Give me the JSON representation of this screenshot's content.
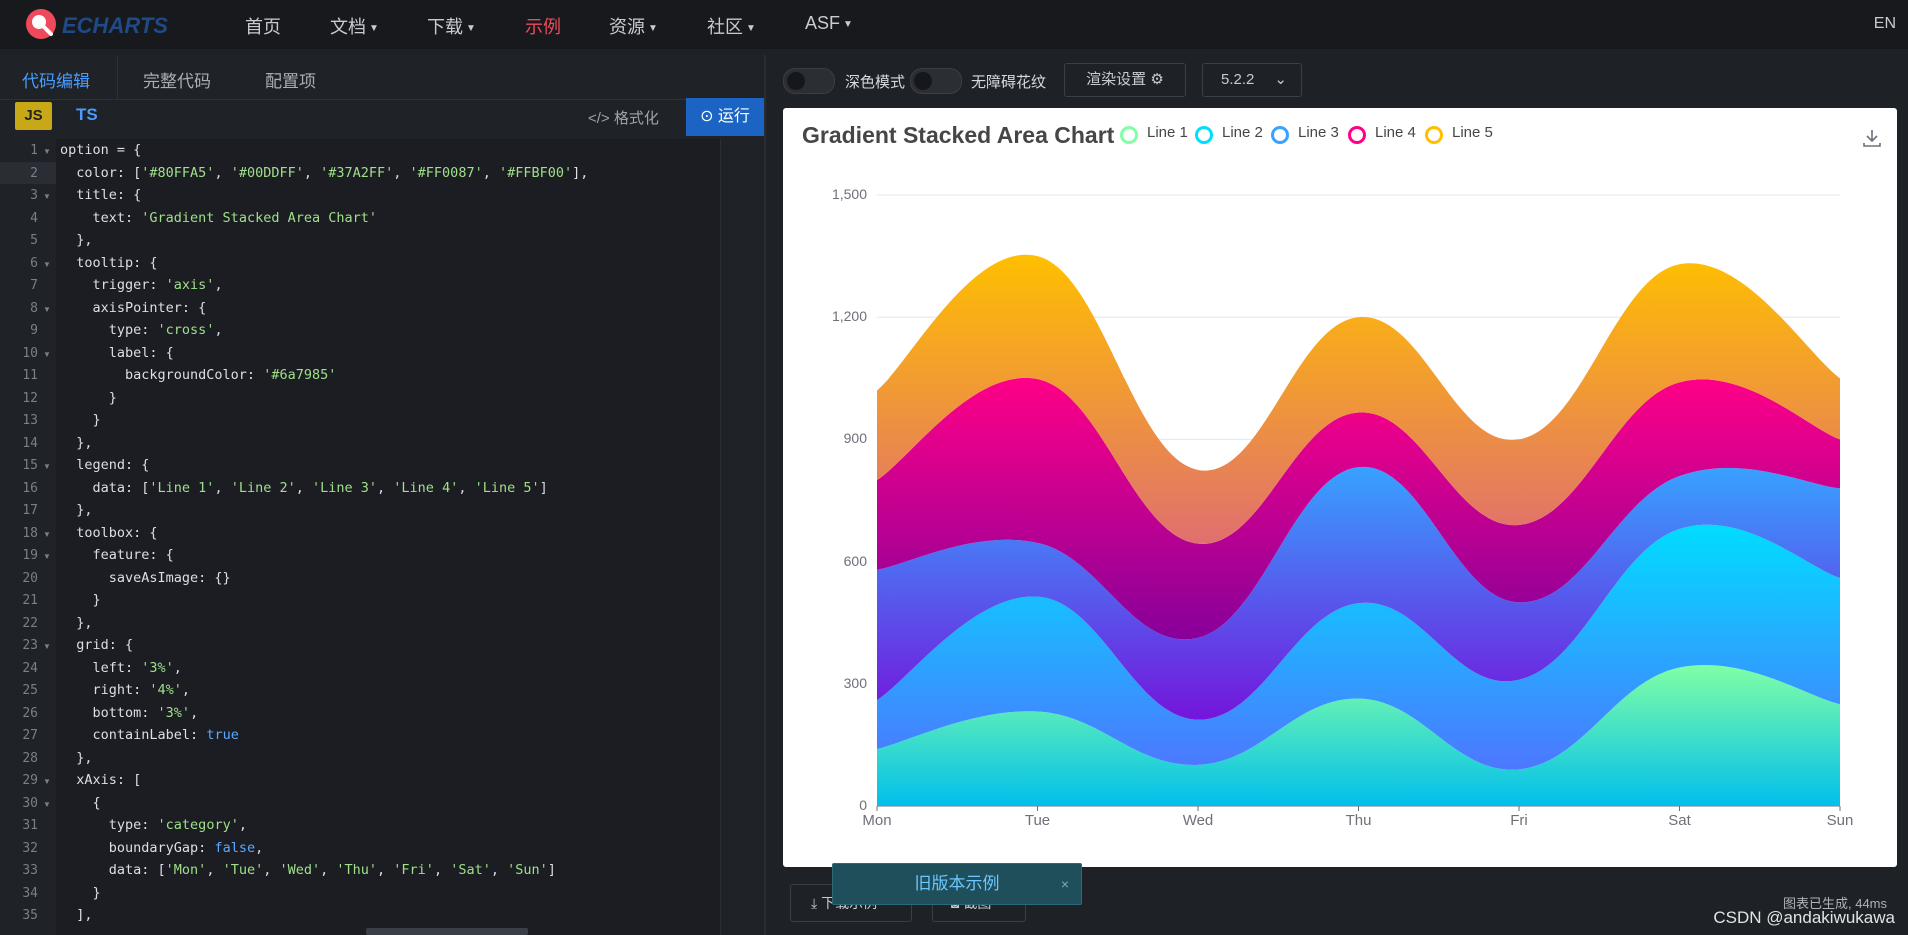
{
  "nav": {
    "logo_text": "ECHARTS",
    "items": [
      "首页",
      "文档",
      "下载",
      "示例",
      "资源",
      "社区",
      "ASF"
    ],
    "active_index": 3,
    "lang": "EN"
  },
  "editor": {
    "tabs": [
      "代码编辑",
      "完整代码",
      "配置项"
    ],
    "active_tab": 0,
    "lang_js": "JS",
    "lang_ts": "TS",
    "format_label": "格式化",
    "run_label": "运行",
    "line_numbers": [
      "1",
      "2",
      "3",
      "4",
      "5",
      "6",
      "7",
      "8",
      "9",
      "10",
      "11",
      "12",
      "13",
      "14",
      "15",
      "16",
      "17",
      "18",
      "19",
      "20",
      "21",
      "22",
      "23",
      "24",
      "25",
      "26",
      "27",
      "28",
      "29",
      "30",
      "31",
      "32",
      "33",
      "34",
      "35"
    ],
    "fold_lines": [
      1,
      3,
      6,
      8,
      10,
      15,
      18,
      19,
      23,
      29,
      30
    ]
  },
  "toolbar": {
    "dark_mode_label": "深色模式",
    "accessible_label": "无障碍花纹",
    "render_label": "渲染设置",
    "version": "5.2.2"
  },
  "chart_data": {
    "type": "area",
    "title": "Gradient Stacked Area Chart",
    "categories": [
      "Mon",
      "Tue",
      "Wed",
      "Thu",
      "Fri",
      "Sat",
      "Sun"
    ],
    "ylim": [
      0,
      1500
    ],
    "yticks": [
      "0",
      "300",
      "600",
      "900",
      "1,200",
      "1,500"
    ],
    "stacked": true,
    "smooth": true,
    "legend_position": "top",
    "series": [
      {
        "name": "Line 1",
        "color": "#80FFA5",
        "gradient_end": "#01BFEC",
        "values": [
          140,
          232,
          101,
          264,
          90,
          340,
          250
        ]
      },
      {
        "name": "Line 2",
        "color": "#00DDFF",
        "gradient_end": "#4D77FF",
        "values": [
          120,
          282,
          111,
          234,
          220,
          340,
          310
        ]
      },
      {
        "name": "Line 3",
        "color": "#37A2FF",
        "gradient_end": "#7415DB",
        "values": [
          320,
          132,
          201,
          334,
          190,
          130,
          220
        ]
      },
      {
        "name": "Line 4",
        "color": "#FF0087",
        "gradient_end": "#87009A",
        "values": [
          220,
          402,
          231,
          134,
          190,
          230,
          120
        ]
      },
      {
        "name": "Line 5",
        "color": "#FFBF00",
        "gradient_end": "#E06F70",
        "values": [
          220,
          302,
          181,
          234,
          210,
          290,
          150
        ]
      }
    ]
  },
  "footer": {
    "toast_text": "旧版本示例",
    "toast_close": "×",
    "download_label": "下载示例",
    "screenshot_label": "截图",
    "status": "图表已生成, 44ms",
    "watermark": "CSDN @andakiwukawa"
  },
  "colors": {
    "accent": "#4a9cff",
    "nav_active": "#ef4a5c",
    "run_bg": "#1b64c4"
  }
}
